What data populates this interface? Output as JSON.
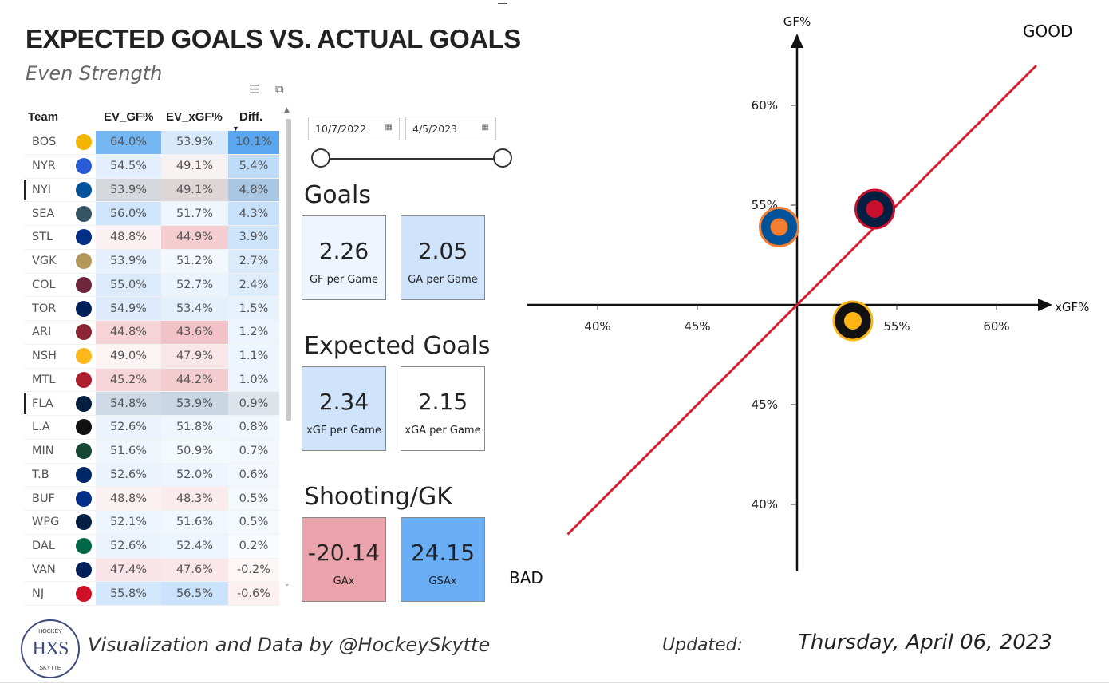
{
  "header": {
    "title": "EXPECTED GOALS VS. ACTUAL GOALS",
    "subtitle": "Even Strength"
  },
  "table": {
    "columns": [
      "Team",
      "EV_GF%",
      "EV_xGF%",
      "Diff."
    ],
    "sort_column": "Diff.",
    "rows": [
      {
        "team": "BOS",
        "gf": "64.0%",
        "xgf": "53.9%",
        "diff": "10.1%",
        "logo": "bruins-logo",
        "logo_color": "#f4b400",
        "gf_bg": "#74b7f3",
        "xgf_bg": "#d8e9fb",
        "diff_bg": "#5aa7f0",
        "selected": false
      },
      {
        "team": "NYR",
        "gf": "54.5%",
        "xgf": "49.1%",
        "diff": "5.4%",
        "logo": "rangers-logo",
        "logo_color": "#2a5bd7",
        "gf_bg": "#e3efff",
        "xgf_bg": "#f8f1f1",
        "diff_bg": "#bcdcfa",
        "selected": false
      },
      {
        "team": "NYI",
        "gf": "53.9%",
        "xgf": "49.1%",
        "diff": "4.8%",
        "logo": "islanders-logo",
        "logo_color": "#00539b",
        "gf_bg": "#d5d9de",
        "xgf_bg": "#ddd5d6",
        "diff_bg": "#a9c6e3",
        "selected": true
      },
      {
        "team": "SEA",
        "gf": "56.0%",
        "xgf": "51.7%",
        "diff": "4.3%",
        "logo": "kraken-logo",
        "logo_color": "#355464",
        "gf_bg": "#cfe5fc",
        "xgf_bg": "#f0f6fe",
        "diff_bg": "#c8e1fb",
        "selected": false
      },
      {
        "team": "STL",
        "gf": "48.8%",
        "xgf": "44.9%",
        "diff": "3.9%",
        "logo": "blues-logo",
        "logo_color": "#002f87",
        "gf_bg": "#fbf1f2",
        "xgf_bg": "#f4cdd1",
        "diff_bg": "#cde4fb",
        "selected": false
      },
      {
        "team": "VGK",
        "gf": "53.9%",
        "xgf": "51.2%",
        "diff": "2.7%",
        "logo": "golden-knights-logo",
        "logo_color": "#b4975a",
        "gf_bg": "#e6f0fd",
        "xgf_bg": "#f3f8fe",
        "diff_bg": "#dbebfc",
        "selected": false
      },
      {
        "team": "COL",
        "gf": "55.0%",
        "xgf": "52.7%",
        "diff": "2.4%",
        "logo": "avalanche-logo",
        "logo_color": "#6f263d",
        "gf_bg": "#dcebfc",
        "xgf_bg": "#ebf3fd",
        "diff_bg": "#deedfc",
        "selected": false
      },
      {
        "team": "TOR",
        "gf": "54.9%",
        "xgf": "53.4%",
        "diff": "1.5%",
        "logo": "maple-leafs-logo",
        "logo_color": "#00205b",
        "gf_bg": "#ddebfc",
        "xgf_bg": "#e5f0fd",
        "diff_bg": "#e8f2fd",
        "selected": false
      },
      {
        "team": "ARI",
        "gf": "44.8%",
        "xgf": "43.6%",
        "diff": "1.2%",
        "logo": "coyotes-logo",
        "logo_color": "#8c2633",
        "gf_bg": "#f5d3d6",
        "xgf_bg": "#f1c3c8",
        "diff_bg": "#ecf4fe",
        "selected": false
      },
      {
        "team": "NSH",
        "gf": "49.0%",
        "xgf": "47.9%",
        "diff": "1.1%",
        "logo": "predators-logo",
        "logo_color": "#ffb81c",
        "gf_bg": "#fcf3f4",
        "xgf_bg": "#f9e6e8",
        "diff_bg": "#edf5fe",
        "selected": false
      },
      {
        "team": "MTL",
        "gf": "45.2%",
        "xgf": "44.2%",
        "diff": "1.0%",
        "logo": "canadiens-logo",
        "logo_color": "#af1e2d",
        "gf_bg": "#f6d6d9",
        "xgf_bg": "#f3ccd0",
        "diff_bg": "#eef5fe",
        "selected": false
      },
      {
        "team": "FLA",
        "gf": "54.8%",
        "xgf": "53.9%",
        "diff": "0.9%",
        "logo": "panthers-logo",
        "logo_color": "#041e42",
        "gf_bg": "#cdd9e5",
        "xgf_bg": "#c9d6e3",
        "diff_bg": "#dde3ea",
        "selected": true
      },
      {
        "team": "L.A",
        "gf": "52.6%",
        "xgf": "51.8%",
        "diff": "0.8%",
        "logo": "kings-logo",
        "logo_color": "#111111",
        "gf_bg": "#ebf3fd",
        "xgf_bg": "#eff6fe",
        "diff_bg": "#f1f7fe",
        "selected": false
      },
      {
        "team": "MIN",
        "gf": "51.6%",
        "xgf": "50.9%",
        "diff": "0.7%",
        "logo": "wild-logo",
        "logo_color": "#154734",
        "gf_bg": "#f0f6fe",
        "xgf_bg": "#f4f9fe",
        "diff_bg": "#f2f8fe",
        "selected": false
      },
      {
        "team": "T.B",
        "gf": "52.6%",
        "xgf": "52.0%",
        "diff": "0.6%",
        "logo": "lightning-logo",
        "logo_color": "#002868",
        "gf_bg": "#ebf3fd",
        "xgf_bg": "#eef5fe",
        "diff_bg": "#f3f8fe",
        "selected": false
      },
      {
        "team": "BUF",
        "gf": "48.8%",
        "xgf": "48.3%",
        "diff": "0.5%",
        "logo": "sabres-logo",
        "logo_color": "#003087",
        "gf_bg": "#fbf1f2",
        "xgf_bg": "#faebec",
        "diff_bg": "#f4f9fe",
        "selected": false
      },
      {
        "team": "WPG",
        "gf": "52.1%",
        "xgf": "51.6%",
        "diff": "0.5%",
        "logo": "jets-logo",
        "logo_color": "#041e42",
        "gf_bg": "#edf5fe",
        "xgf_bg": "#f1f7fe",
        "diff_bg": "#f4f9fe",
        "selected": false
      },
      {
        "team": "DAL",
        "gf": "52.6%",
        "xgf": "52.4%",
        "diff": "0.2%",
        "logo": "stars-logo",
        "logo_color": "#006847",
        "gf_bg": "#ebf3fd",
        "xgf_bg": "#ecf4fd",
        "diff_bg": "#f8fbff",
        "selected": false
      },
      {
        "team": "VAN",
        "gf": "47.4%",
        "xgf": "47.6%",
        "diff": "-0.2%",
        "logo": "canucks-logo",
        "logo_color": "#00205b",
        "gf_bg": "#f9e5e7",
        "xgf_bg": "#f9e7e9",
        "diff_bg": "#fdf6f6",
        "selected": false
      },
      {
        "team": "NJ",
        "gf": "55.8%",
        "xgf": "56.5%",
        "diff": "-0.6%",
        "logo": "devils-logo",
        "logo_color": "#ce1126",
        "gf_bg": "#d2e7fc",
        "xgf_bg": "#cae2fb",
        "diff_bg": "#fcf0f1",
        "selected": false
      }
    ]
  },
  "date_slicer": {
    "start": "10/7/2022",
    "end": "4/5/2023"
  },
  "sections": {
    "goals": "Goals",
    "expected_goals": "Expected Goals",
    "shooting_gk": "Shooting/GK"
  },
  "cards": {
    "gf": {
      "value": "2.26",
      "label": "GF per Game",
      "bg": "#eef5ff"
    },
    "ga": {
      "value": "2.05",
      "label": "GA per Game",
      "bg": "#cfe3fb"
    },
    "xgf": {
      "value": "2.34",
      "label": "xGF per Game",
      "bg": "#cfe3fb"
    },
    "xga": {
      "value": "2.15",
      "label": "xGA per Game",
      "bg": "#ffffff"
    },
    "gax": {
      "value": "-20.14",
      "label": "GAx",
      "bg": "#eba3ab"
    },
    "gsax": {
      "value": "24.15",
      "label": "GSAx",
      "bg": "#6aaef6"
    }
  },
  "chart_data": {
    "type": "scatter",
    "xlabel": "xGF%",
    "ylabel": "GF%",
    "origin": [
      50,
      50
    ],
    "x_ticks": [
      "40%",
      "45%",
      "55%",
      "60%"
    ],
    "y_ticks": [
      "60%",
      "55%",
      "45%",
      "40%"
    ],
    "quadrant_labels": {
      "good": "GOOD",
      "bad": "BAD"
    },
    "reference_line": "y = x",
    "reference_line_color": "#d42030",
    "points": [
      {
        "team": "NYI",
        "x": 49.1,
        "y": 53.9,
        "logo": "islanders-logo",
        "color": "#00539b",
        "accent": "#f47d30"
      },
      {
        "team": "FLA",
        "x": 53.9,
        "y": 54.8,
        "logo": "panthers-logo",
        "color": "#041e42",
        "accent": "#c8102e"
      },
      {
        "team": "PIT",
        "x": 52.8,
        "y": 49.2,
        "logo": "penguins-logo",
        "color": "#111111",
        "accent": "#fcb514"
      }
    ]
  },
  "footer": {
    "logo_top": "HOCKEY",
    "logo_mono": "HXS",
    "logo_bottom": "SKYTTE",
    "credit": "Visualization and Data by @HockeySkytte",
    "updated_label": "Updated:",
    "updated_date": "Thursday, April 06, 2023"
  }
}
